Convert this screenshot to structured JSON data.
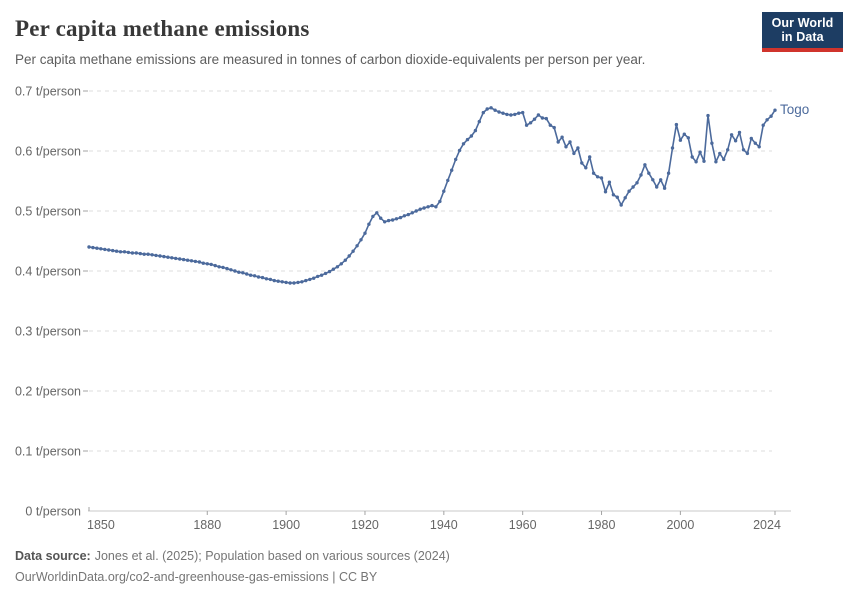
{
  "header": {
    "logo": {
      "line1": "Our World",
      "line2": "in Data"
    }
  },
  "footer": {
    "datasource_label": "Data source:",
    "datasource_text": "Jones et al. (2025); Population based on various sources (2024)",
    "url_line": "OurWorldinData.org/co2-and-greenhouse-gas-emissions | CC BY"
  },
  "colors": {
    "background": "#ffffff",
    "line": "#4c6a9c",
    "grid": "#dcdcdc",
    "axis": "#c8c8c8",
    "tick": "#a3a3a3",
    "tick_label": "#666666",
    "title": "#383838",
    "subtitle": "#5e5e5e",
    "footer": "#757575",
    "footer_bold": "#555555",
    "logo_bg": "#1d3d63",
    "logo_accent": "#d0342c"
  },
  "chart_data": {
    "type": "line",
    "title": "Per capita methane emissions",
    "subtitle": "Per capita methane emissions are measured in tonnes of carbon dioxide-equivalents per person per year.",
    "xlabel": "",
    "ylabel": "t/person",
    "xlim": [
      1850,
      2024
    ],
    "ylim": [
      0,
      0.7
    ],
    "grid": "horizontal-dashed",
    "legend_position": "end-of-line-label",
    "x_ticks": [
      {
        "value": 1850,
        "label": "1850"
      },
      {
        "value": 1880,
        "label": "1880"
      },
      {
        "value": 1900,
        "label": "1900"
      },
      {
        "value": 1920,
        "label": "1920"
      },
      {
        "value": 1940,
        "label": "1940"
      },
      {
        "value": 1960,
        "label": "1960"
      },
      {
        "value": 1980,
        "label": "1980"
      },
      {
        "value": 2000,
        "label": "2000"
      },
      {
        "value": 2024,
        "label": "2024"
      }
    ],
    "y_ticks": [
      {
        "value": 0.0,
        "label": "0 t/person"
      },
      {
        "value": 0.1,
        "label": "0.1 t/person"
      },
      {
        "value": 0.2,
        "label": "0.2 t/person"
      },
      {
        "value": 0.3,
        "label": "0.3 t/person"
      },
      {
        "value": 0.4,
        "label": "0.4 t/person"
      },
      {
        "value": 0.5,
        "label": "0.5 t/person"
      },
      {
        "value": 0.6,
        "label": "0.6 t/person"
      },
      {
        "value": 0.7,
        "label": "0.7 t/person"
      }
    ],
    "series": [
      {
        "name": "Togo",
        "color": "#4c6a9c",
        "x_start": 1850,
        "x_step": 1,
        "values": [
          0.44,
          0.439,
          0.438,
          0.437,
          0.436,
          0.435,
          0.434,
          0.433,
          0.432,
          0.432,
          0.431,
          0.43,
          0.43,
          0.429,
          0.428,
          0.428,
          0.427,
          0.426,
          0.425,
          0.424,
          0.423,
          0.422,
          0.421,
          0.42,
          0.419,
          0.418,
          0.417,
          0.416,
          0.415,
          0.413,
          0.412,
          0.411,
          0.409,
          0.407,
          0.406,
          0.404,
          0.402,
          0.4,
          0.398,
          0.397,
          0.395,
          0.393,
          0.392,
          0.39,
          0.389,
          0.387,
          0.386,
          0.384,
          0.383,
          0.382,
          0.381,
          0.38,
          0.38,
          0.381,
          0.382,
          0.384,
          0.386,
          0.388,
          0.391,
          0.393,
          0.396,
          0.399,
          0.403,
          0.407,
          0.412,
          0.418,
          0.425,
          0.433,
          0.442,
          0.452,
          0.463,
          0.478,
          0.491,
          0.497,
          0.488,
          0.482,
          0.484,
          0.485,
          0.487,
          0.489,
          0.492,
          0.494,
          0.497,
          0.5,
          0.503,
          0.505,
          0.507,
          0.509,
          0.507,
          0.516,
          0.533,
          0.551,
          0.568,
          0.586,
          0.601,
          0.612,
          0.619,
          0.625,
          0.634,
          0.649,
          0.664,
          0.67,
          0.672,
          0.668,
          0.665,
          0.663,
          0.661,
          0.66,
          0.661,
          0.663,
          0.664,
          0.643,
          0.647,
          0.653,
          0.66,
          0.655,
          0.654,
          0.643,
          0.639,
          0.615,
          0.623,
          0.607,
          0.615,
          0.596,
          0.605,
          0.58,
          0.572,
          0.59,
          0.563,
          0.557,
          0.555,
          0.532,
          0.548,
          0.527,
          0.523,
          0.51,
          0.522,
          0.533,
          0.54,
          0.547,
          0.56,
          0.577,
          0.563,
          0.552,
          0.54,
          0.552,
          0.538,
          0.563,
          0.605,
          0.644,
          0.618,
          0.628,
          0.622,
          0.59,
          0.582,
          0.598,
          0.583,
          0.659,
          0.613,
          0.582,
          0.596,
          0.586,
          0.602,
          0.627,
          0.617,
          0.631,
          0.602,
          0.596,
          0.621,
          0.613,
          0.607,
          0.643,
          0.652,
          0.658,
          0.668
        ]
      }
    ]
  }
}
